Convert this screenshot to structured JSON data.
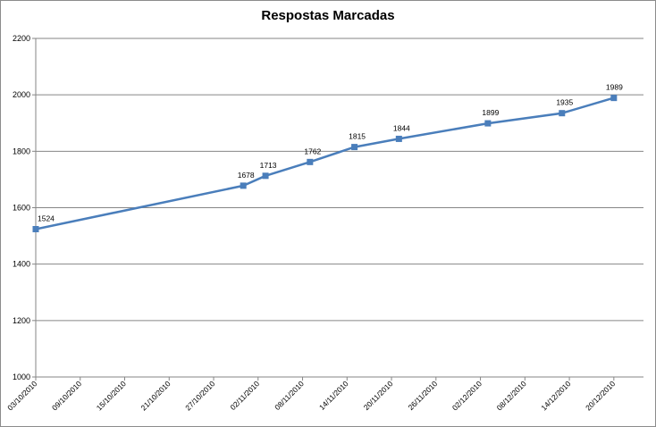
{
  "chart_data": {
    "type": "line",
    "title": "Respostas Marcadas",
    "xlabel": "",
    "ylabel": "",
    "ylim": [
      1000,
      2200
    ],
    "y_ticks": [
      1000,
      1200,
      1400,
      1600,
      1800,
      2000,
      2200
    ],
    "x_tick_labels": [
      "03/10/2010",
      "09/10/2010",
      "15/10/2010",
      "21/10/2010",
      "27/10/2010",
      "02/11/2010",
      "08/11/2010",
      "14/11/2010",
      "20/11/2010",
      "26/11/2010",
      "02/12/2010",
      "08/12/2010",
      "14/12/2010",
      "20/12/2010"
    ],
    "x_range": [
      "2010-10-03",
      "2010-12-24"
    ],
    "grid": true,
    "legend": "none",
    "line_color": "#4a7ebb",
    "series": [
      {
        "x": [
          "2010-10-03",
          "2010-10-31",
          "2010-11-03",
          "2010-11-09",
          "2010-11-15",
          "2010-11-21",
          "2010-12-03",
          "2010-12-13",
          "2010-12-20"
        ],
        "values": [
          1524,
          1678,
          1713,
          1762,
          1815,
          1844,
          1899,
          1935,
          1989
        ]
      }
    ]
  }
}
